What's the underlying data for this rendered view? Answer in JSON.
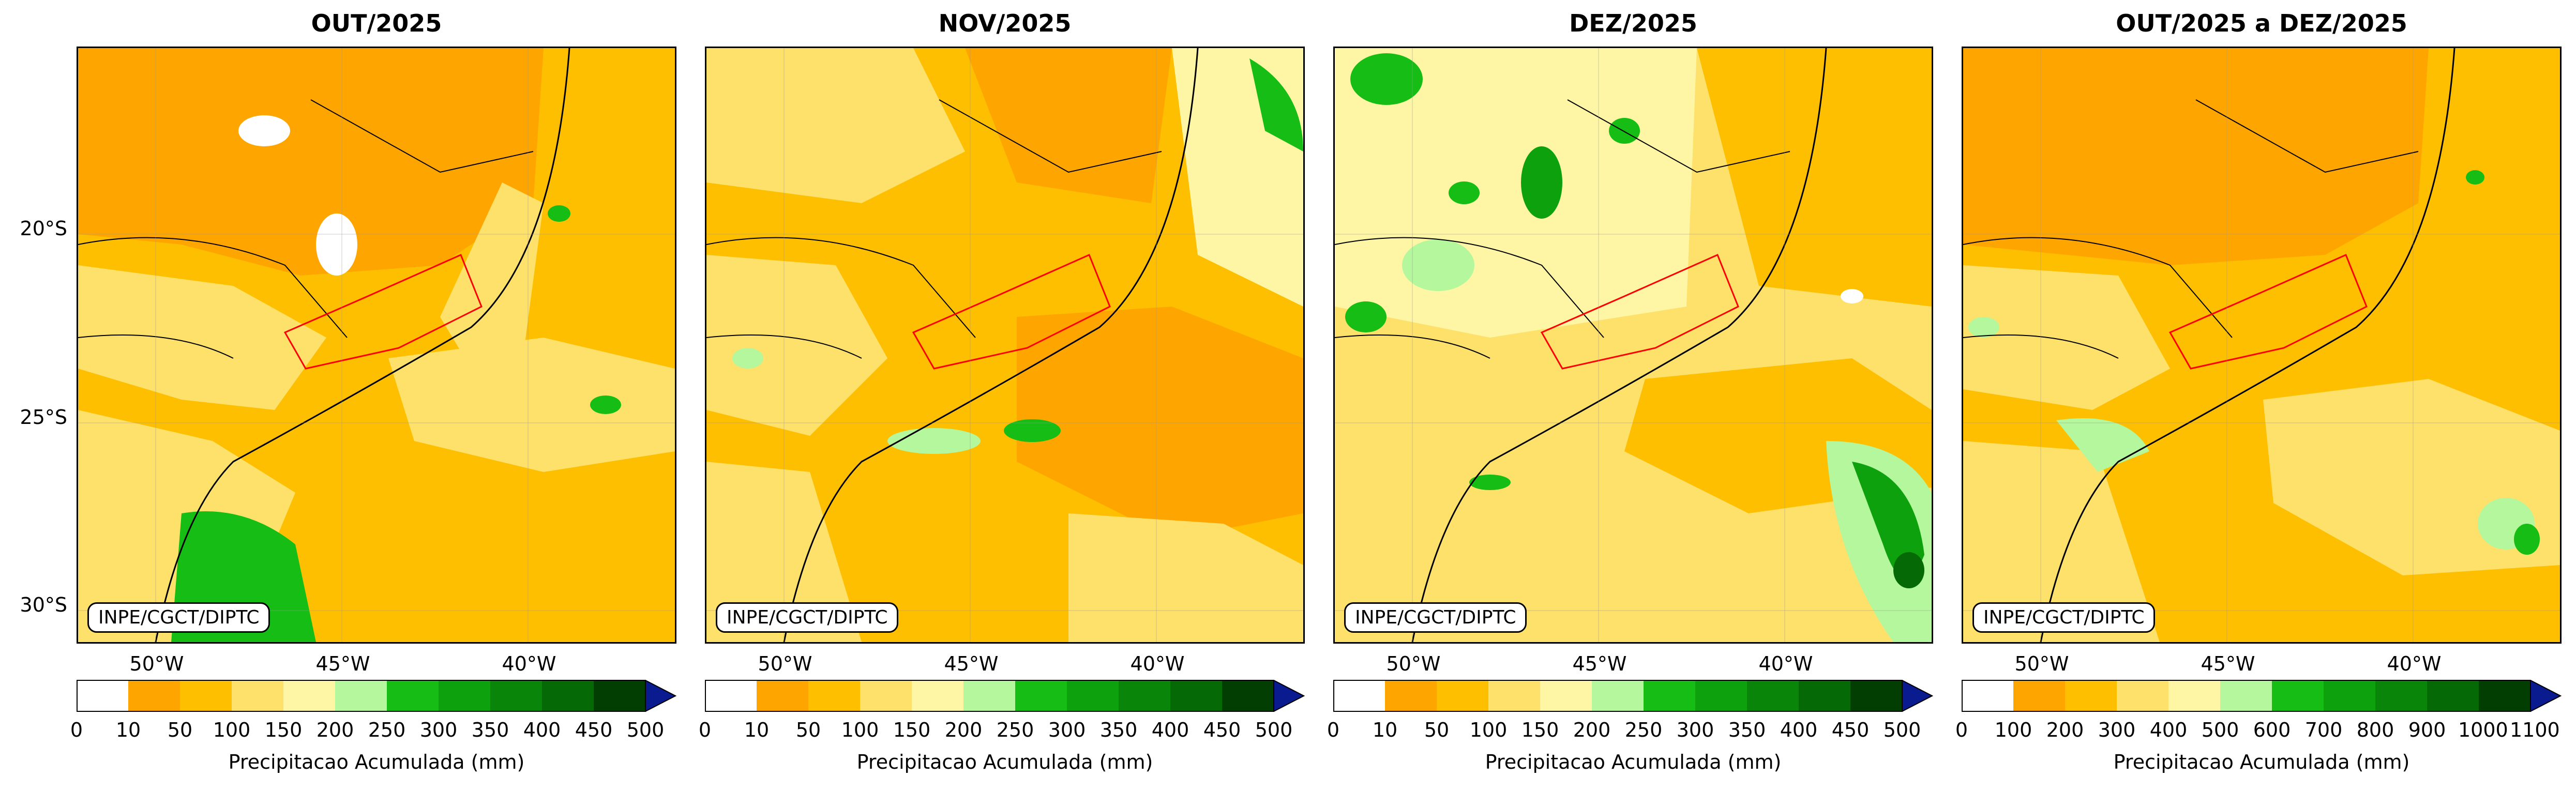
{
  "colors": {
    "c0": "#ffffff",
    "c1": "#fea500",
    "c2": "#febf00",
    "c3": "#fee16b",
    "c4": "#fef6a4",
    "c5": "#b4f79c",
    "c6": "#15bd15",
    "c7": "#0ea10e",
    "c8": "#098509",
    "c9": "#056905",
    "c10": "#023d02",
    "extend": "#0a1a8f",
    "state_border": "#000000",
    "region_outline": "#ff0000"
  },
  "panels": [
    {
      "title": "OUT/2025",
      "credit": "INPE/CGCT/DIPTC",
      "cbar_label": "Precipitacao Acumulada (mm)",
      "ticks": [
        "0",
        "10",
        "50",
        "100",
        "150",
        "200",
        "250",
        "300",
        "350",
        "400",
        "450",
        "500"
      ]
    },
    {
      "title": "NOV/2025",
      "credit": "INPE/CGCT/DIPTC",
      "cbar_label": "Precipitacao Acumulada (mm)",
      "ticks": [
        "0",
        "10",
        "50",
        "100",
        "150",
        "200",
        "250",
        "300",
        "350",
        "400",
        "450",
        "500"
      ]
    },
    {
      "title": "DEZ/2025",
      "credit": "INPE/CGCT/DIPTC",
      "cbar_label": "Precipitacao Acumulada (mm)",
      "ticks": [
        "0",
        "10",
        "50",
        "100",
        "150",
        "200",
        "250",
        "300",
        "350",
        "400",
        "450",
        "500"
      ]
    },
    {
      "title": "OUT/2025 a DEZ/2025",
      "credit": "INPE/CGCT/DIPTC",
      "cbar_label": "Precipitacao Acumulada (mm)",
      "ticks": [
        "0",
        "100",
        "200",
        "300",
        "400",
        "500",
        "600",
        "700",
        "800",
        "900",
        "1000",
        "1100"
      ]
    }
  ],
  "lat_labels": [
    "20°S",
    "25°S",
    "30°S"
  ],
  "lon_labels": [
    "50°W",
    "45°W",
    "40°W"
  ]
}
